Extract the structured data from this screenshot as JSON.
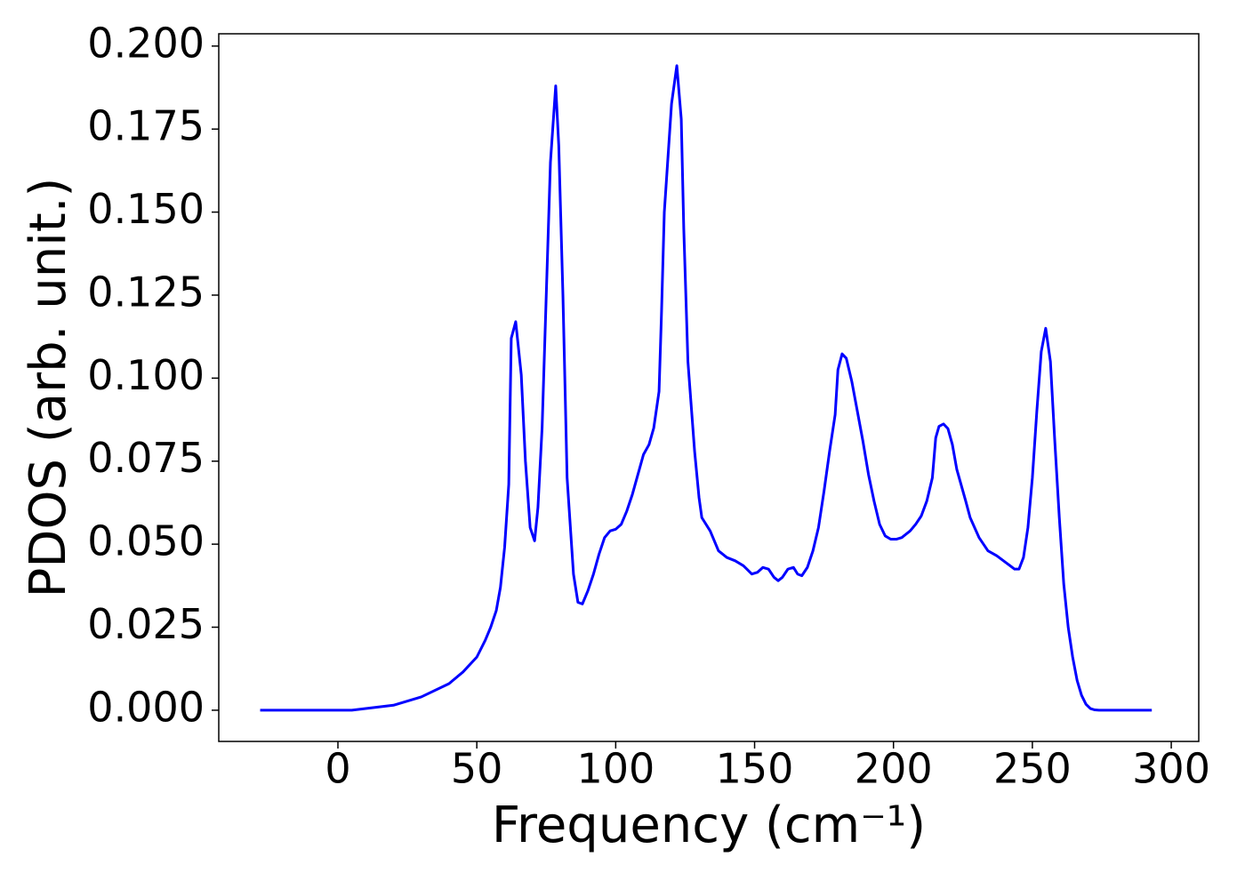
{
  "chart_data": {
    "type": "line",
    "xlabel": "Frequency (cm⁻¹)",
    "ylabel": "PDOS (arb. unit.)",
    "color": "#0000ff",
    "xlim": [
      -42.9,
      309.9
    ],
    "ylim": [
      -0.0094,
      0.2037
    ],
    "xticks": [
      0,
      50,
      100,
      150,
      200,
      250,
      300
    ],
    "yticks": [
      {
        "value": 0,
        "label": "0.000"
      },
      {
        "value": 0.025,
        "label": "0.025"
      },
      {
        "value": 0.05,
        "label": "0.050"
      },
      {
        "value": 0.075,
        "label": "0.075"
      },
      {
        "value": 0.1,
        "label": "0.100"
      },
      {
        "value": 0.125,
        "label": "0.125"
      },
      {
        "value": 0.15,
        "label": "0.150"
      },
      {
        "value": 0.175,
        "label": "0.175"
      },
      {
        "value": 0.2,
        "label": "0.200"
      }
    ],
    "x": [
      -28,
      -10,
      5,
      10,
      20,
      30,
      40,
      45,
      50,
      53,
      55,
      57,
      58.5,
      60,
      61.5,
      62.4,
      64,
      66,
      67.5,
      69.2,
      70.8,
      72,
      73.5,
      75,
      76.5,
      78.4,
      79.5,
      81,
      82.5,
      84.8,
      86.4,
      88,
      90,
      92,
      94,
      96,
      98,
      100,
      102,
      104,
      106,
      108,
      110,
      112,
      113.7,
      115.6,
      116.5,
      117.5,
      120.1,
      122,
      123.6,
      124.5,
      126,
      128.4,
      130,
      131,
      134,
      137,
      140,
      143,
      146,
      149,
      151,
      153,
      155,
      157,
      158.5,
      160,
      162,
      164,
      165.5,
      167,
      169,
      171,
      173,
      175,
      177,
      179,
      180,
      181.5,
      183,
      185,
      187,
      189,
      191,
      193,
      195,
      197,
      199,
      201,
      203,
      206,
      208,
      210,
      212,
      214,
      215.2,
      216.4,
      218,
      219.6,
      221.2,
      222.8,
      226,
      227.6,
      230.8,
      234,
      237.2,
      240.4,
      243.6,
      245.2,
      246.8,
      248.4,
      250,
      251.6,
      253.2,
      254.8,
      256.5,
      258,
      259.7,
      261.3,
      262.9,
      264.5,
      266.1,
      267.7,
      269.3,
      270.9,
      272.5,
      274,
      285,
      293
    ],
    "values": [
      0,
      0,
      0,
      0.0005,
      0.0015,
      0.004,
      0.008,
      0.0115,
      0.016,
      0.021,
      0.025,
      0.03,
      0.037,
      0.049,
      0.068,
      0.112,
      0.117,
      0.101,
      0.075,
      0.055,
      0.051,
      0.061,
      0.085,
      0.125,
      0.165,
      0.188,
      0.17,
      0.125,
      0.07,
      0.041,
      0.0325,
      0.032,
      0.036,
      0.041,
      0.047,
      0.052,
      0.054,
      0.0545,
      0.056,
      0.06,
      0.065,
      0.071,
      0.077,
      0.08,
      0.085,
      0.096,
      0.12,
      0.15,
      0.1826,
      0.1941,
      0.178,
      0.145,
      0.105,
      0.078,
      0.064,
      0.058,
      0.054,
      0.048,
      0.046,
      0.045,
      0.0435,
      0.041,
      0.0415,
      0.043,
      0.0425,
      0.04,
      0.039,
      0.04,
      0.0425,
      0.043,
      0.041,
      0.0405,
      0.043,
      0.048,
      0.055,
      0.066,
      0.078,
      0.089,
      0.1025,
      0.1073,
      0.106,
      0.099,
      0.09,
      0.081,
      0.071,
      0.063,
      0.056,
      0.0525,
      0.0515,
      0.0515,
      0.052,
      0.054,
      0.056,
      0.0585,
      0.063,
      0.07,
      0.082,
      0.0855,
      0.0862,
      0.0848,
      0.08,
      0.0725,
      0.063,
      0.058,
      0.052,
      0.048,
      0.0465,
      0.0445,
      0.0425,
      0.0425,
      0.046,
      0.055,
      0.07,
      0.09,
      0.108,
      0.115,
      0.105,
      0.082,
      0.058,
      0.038,
      0.025,
      0.016,
      0.009,
      0.0045,
      0.0018,
      0.0005,
      0.0001,
      0,
      0,
      0
    ]
  }
}
